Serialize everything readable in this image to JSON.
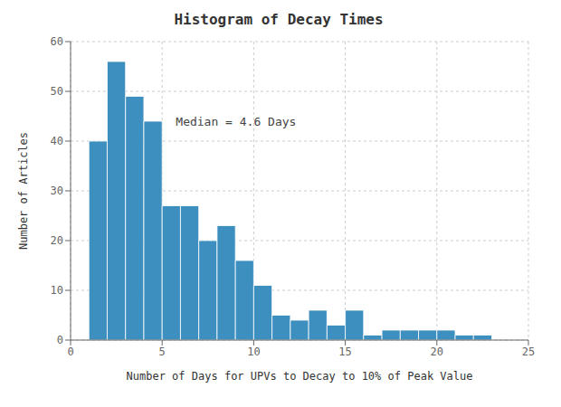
{
  "chart_data": {
    "type": "histogram",
    "title": "Histogram of Decay Times",
    "xlabel": "Number of Days for UPVs to Decay to 10% of Peak Value",
    "ylabel": "Number of Articles",
    "bins": [
      1,
      2,
      3,
      4,
      5,
      6,
      7,
      8,
      9,
      10,
      11,
      12,
      13,
      14,
      15,
      16,
      17,
      18,
      19,
      20,
      21,
      22,
      23
    ],
    "values": [
      40,
      56,
      49,
      44,
      27,
      27,
      20,
      23,
      16,
      11,
      5,
      4,
      6,
      3,
      6,
      1,
      2,
      2,
      2,
      2,
      1,
      1
    ],
    "color": "#3d8fbf",
    "xlim": [
      0,
      25
    ],
    "ylim": [
      0,
      60
    ],
    "xticks": [
      0,
      5,
      10,
      15,
      20,
      25
    ],
    "yticks": [
      0,
      10,
      20,
      30,
      40,
      50,
      60
    ],
    "grid": true,
    "annotations": [
      {
        "text": "Median = 4.6 Days",
        "x": 5.5,
        "y": 44
      }
    ]
  }
}
